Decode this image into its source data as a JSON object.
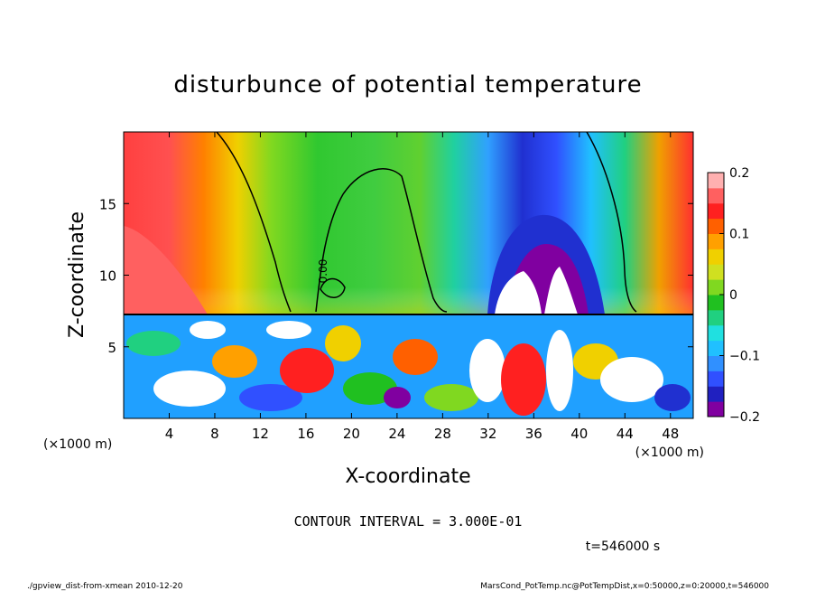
{
  "chart_data": {
    "type": "heatmap",
    "title": "disturbunce of potential temperature",
    "xlabel": "X-coordinate",
    "ylabel": "Z-coordinate",
    "x_unit_left": "(×1000 m)",
    "x_unit_right": "(×1000 m)",
    "xlim": [
      0,
      50
    ],
    "ylim": [
      0,
      20
    ],
    "x_ticks": [
      4,
      8,
      12,
      16,
      20,
      24,
      28,
      32,
      36,
      40,
      44,
      48
    ],
    "y_ticks": [
      5,
      10,
      15
    ],
    "colorbar": {
      "range": [
        -0.2,
        0.2
      ],
      "ticks": [
        0.2,
        0.1,
        0,
        -0.1,
        -0.2
      ],
      "tick_labels": [
        "0.2",
        "0.1",
        "0",
        "−0.1",
        "−0.2"
      ],
      "colors": [
        "#8000a0",
        "#2020c0",
        "#3050ff",
        "#3090ff",
        "#20c0ff",
        "#20e0e0",
        "#20d080",
        "#20c020",
        "#80d820",
        "#d0e020",
        "#f0d000",
        "#ffa000",
        "#ff6000",
        "#ff2020",
        "#ff6060",
        "#ffb0b0"
      ]
    },
    "contour_label": "0.00",
    "contour_interval_text": "CONTOUR INTERVAL = 3.000E-01",
    "time_text": "t=546000 s",
    "summary": {
      "upper_layer_z_km": [
        7.5,
        20
      ],
      "warm_regions_x_km": [
        [
          0,
          12
        ],
        [
          45,
          50
        ]
      ],
      "cold_region_x_km": [
        30,
        44
      ],
      "cold_core_min": -0.2,
      "warm_max": 0.2
    }
  },
  "footer": {
    "left": "./gpview_dist-from-xmean  2010-12-20",
    "right": "MarsCond_PotTemp.nc@PotTempDist,x=0:50000,z=0:20000,t=546000"
  }
}
